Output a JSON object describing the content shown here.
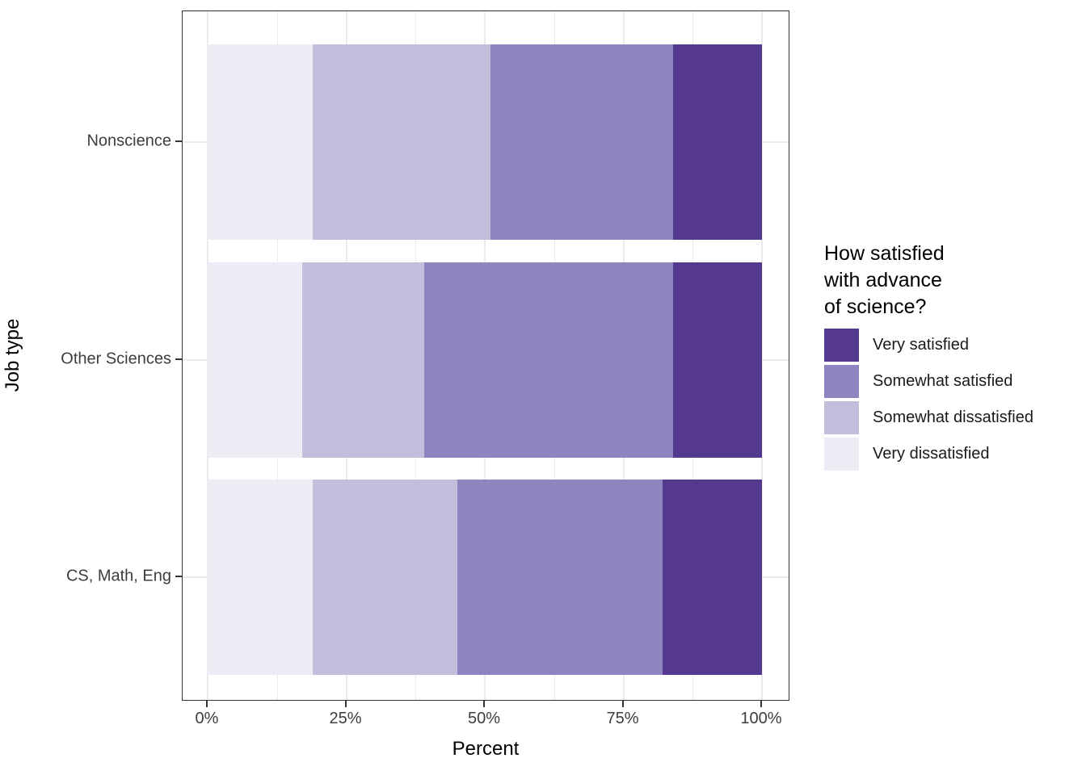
{
  "axes": {
    "x": {
      "title": "Percent",
      "tick_labels": [
        "0%",
        "25%",
        "50%",
        "75%",
        "100%"
      ]
    },
    "y": {
      "title": "Job type",
      "categories": [
        "Nonscience",
        "Other Sciences",
        "CS, Math, Eng"
      ]
    }
  },
  "legend": {
    "title_lines": [
      "How satisfied",
      "with advance",
      "of science?"
    ],
    "entries": [
      {
        "label": "Very satisfied",
        "color": "#54398E"
      },
      {
        "label": "Somewhat satisfied",
        "color": "#8C85C0"
      },
      {
        "label": "Somewhat dissatisfied",
        "color": "#C3BEDC"
      },
      {
        "label": "Very dissatisfied",
        "color": "#EDEBF4"
      }
    ]
  },
  "chart_data": {
    "type": "bar",
    "orientation": "horizontal",
    "stacked": true,
    "unit": "percent",
    "categories": [
      "Nonscience",
      "Other Sciences",
      "CS, Math, Eng"
    ],
    "series": [
      {
        "name": "Very dissatisfied",
        "color": "#EDEBF4",
        "values": [
          19,
          17,
          19
        ]
      },
      {
        "name": "Somewhat dissatisfied",
        "color": "#C3BEDC",
        "values": [
          32,
          22,
          26
        ]
      },
      {
        "name": "Somewhat satisfied",
        "color": "#8C85C0",
        "values": [
          33,
          45,
          37
        ]
      },
      {
        "name": "Very satisfied",
        "color": "#54398E",
        "values": [
          16,
          16,
          18
        ]
      }
    ],
    "title": "",
    "xlabel": "Percent",
    "ylabel": "Job type",
    "xlim": [
      0,
      100
    ],
    "x_major_ticks": [
      0,
      25,
      50,
      75,
      100
    ],
    "x_minor_ticks": [
      12.5,
      37.5,
      62.5,
      87.5
    ],
    "grid": true,
    "panel_border": true,
    "legend_position": "right",
    "legend_title": "How satisfied with advance of science?"
  }
}
